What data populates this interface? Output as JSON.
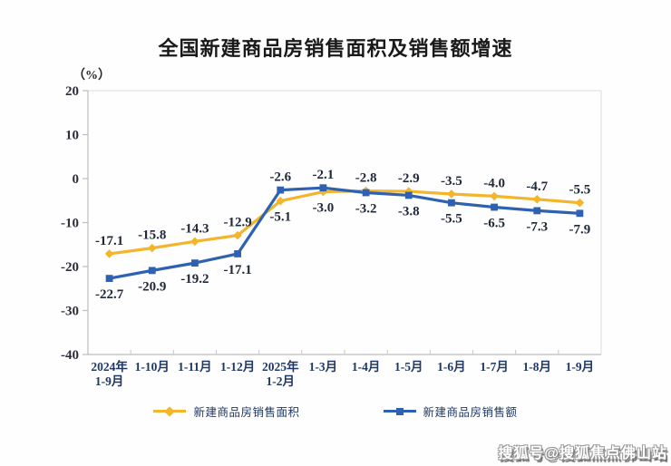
{
  "chart": {
    "watermark": "搜狐号@搜狐焦点佛山站"
  },
  "chart_data": {
    "type": "line",
    "title": "全国新建商品房销售面积及销售额增速",
    "ylabel": "（%）",
    "xlabel": "",
    "ylim": [
      -40,
      20
    ],
    "ytick_step": 10,
    "yticks": [
      20,
      10,
      0,
      -10,
      -20,
      -30,
      -40
    ],
    "grid": false,
    "legend_position": "bottom",
    "data_labels": true,
    "categories": [
      "2024年\n1-9月",
      "1-10月",
      "1-11月",
      "1-12月",
      "2025年\n1-2月",
      "1-3月",
      "1-4月",
      "1-5月",
      "1-6月",
      "1-7月",
      "1-8月",
      "1-9月"
    ],
    "series": [
      {
        "name": "新建商品房销售面积",
        "color": "#F2B52B",
        "marker": "diamond",
        "values": [
          -17.1,
          -15.8,
          -14.3,
          -12.9,
          -5.1,
          -3.0,
          -2.8,
          -2.9,
          -3.5,
          -4.0,
          -4.7,
          -5.5
        ]
      },
      {
        "name": "新建商品房销售额",
        "color": "#2E62B1",
        "marker": "square",
        "values": [
          -22.7,
          -20.9,
          -19.2,
          -17.1,
          -2.6,
          -2.1,
          -3.2,
          -3.8,
          -5.5,
          -6.5,
          -7.3,
          -7.9
        ]
      }
    ]
  }
}
